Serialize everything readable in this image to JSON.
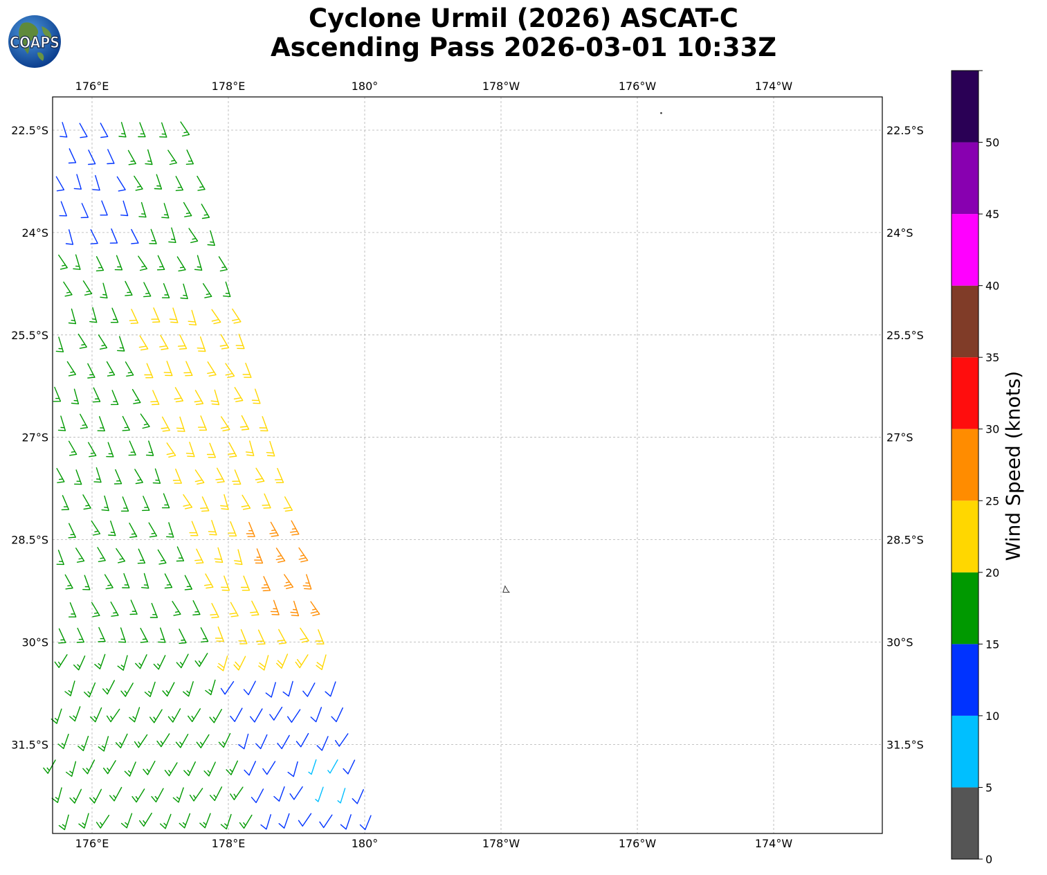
{
  "title": {
    "line1": "Cyclone Urmil (2026) ASCAT-C",
    "line2": "Ascending Pass 2026-03-01 10:33Z"
  },
  "logo": {
    "text": "COAPS",
    "icon": "globe-logo-icon"
  },
  "map": {
    "lon_range": [
      175.4,
      187.6
    ],
    "lat_range": [
      -33.3,
      -22.5
    ],
    "lon_ticks": [
      {
        "value": 176,
        "label": "176°E"
      },
      {
        "value": 178,
        "label": "178°E"
      },
      {
        "value": 180,
        "label": "180°"
      },
      {
        "value": 182,
        "label": "178°W"
      },
      {
        "value": 184,
        "label": "176°W"
      },
      {
        "value": 186,
        "label": "174°W"
      }
    ],
    "lat_ticks": [
      {
        "value": -22.5,
        "label": "22.5°S"
      },
      {
        "value": -24,
        "label": "24°S"
      },
      {
        "value": -25.5,
        "label": "25.5°S"
      },
      {
        "value": -27,
        "label": "27°S"
      },
      {
        "value": -28.5,
        "label": "28.5°S"
      },
      {
        "value": -30,
        "label": "30°S"
      },
      {
        "value": -31.5,
        "label": "31.5°S"
      }
    ],
    "swath": {
      "edge_top_lon": 177.2,
      "edge_bottom_lon": 180.3,
      "lat_top": -22.0,
      "lat_bottom": -33.3,
      "row_step": 0.13,
      "col_step": 0.21
    },
    "islands": [
      {
        "lon": 184.35,
        "lat": -22.25,
        "icon": "islet-dot-icon"
      },
      {
        "lon": 182.07,
        "lat": -29.23,
        "icon": "island-outline-icon"
      }
    ]
  },
  "colorbar": {
    "label": "Wind Speed (knots)",
    "bins": [
      {
        "from": 0,
        "to": 5,
        "color": "#555555"
      },
      {
        "from": 5,
        "to": 10,
        "color": "#00bfff"
      },
      {
        "from": 10,
        "to": 15,
        "color": "#0033ff"
      },
      {
        "from": 15,
        "to": 20,
        "color": "#009900"
      },
      {
        "from": 20,
        "to": 25,
        "color": "#ffd700"
      },
      {
        "from": 25,
        "to": 30,
        "color": "#ff8c00"
      },
      {
        "from": 30,
        "to": 35,
        "color": "#ff0d0d"
      },
      {
        "from": 35,
        "to": 40,
        "color": "#803c28"
      },
      {
        "from": 40,
        "to": 45,
        "color": "#ff00ff"
      },
      {
        "from": 45,
        "to": 50,
        "color": "#8800b0"
      },
      {
        "from": 50,
        "to": 55,
        "color": "#2a0055"
      }
    ],
    "tick_values": [
      "0",
      "5",
      "10",
      "15",
      "20",
      "25",
      "30",
      "35",
      "40",
      "45",
      "50"
    ]
  }
}
